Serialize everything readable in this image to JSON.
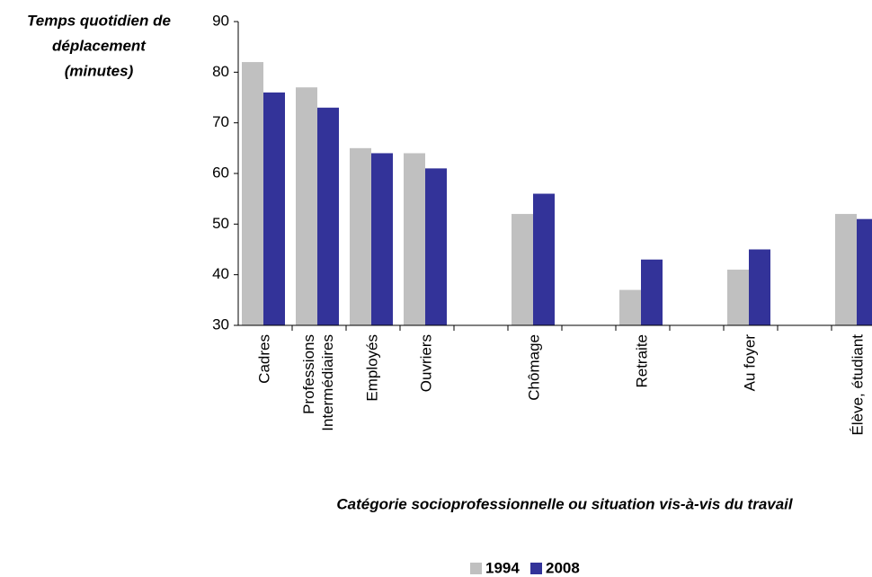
{
  "chart_data": {
    "type": "bar",
    "ylabel": [
      "Temps quotidien de",
      "déplacement",
      "(minutes)"
    ],
    "xlabel": "Catégorie socioprofessionnelle ou situation vis-à-vis du travail",
    "categories": [
      [
        "Cadres"
      ],
      [
        "Professions",
        "Intermédiaires"
      ],
      [
        "Employés"
      ],
      [
        "Ouvriers"
      ],
      null,
      [
        "Chômage"
      ],
      null,
      [
        "Retraite"
      ],
      null,
      [
        "Au foyer"
      ],
      null,
      [
        "Élève, étudiant"
      ]
    ],
    "series": [
      {
        "name": "1994",
        "color": "#c0c0c0",
        "values": [
          82,
          77,
          65,
          64,
          null,
          52,
          null,
          37,
          null,
          41,
          null,
          52
        ]
      },
      {
        "name": "2008",
        "color": "#333399",
        "values": [
          76,
          73,
          64,
          61,
          null,
          56,
          null,
          43,
          null,
          45,
          null,
          51
        ]
      }
    ],
    "ylim": [
      30,
      90
    ],
    "yticks": [
      30,
      40,
      50,
      60,
      70,
      80,
      90
    ],
    "grid": false,
    "legend": "bottom"
  }
}
